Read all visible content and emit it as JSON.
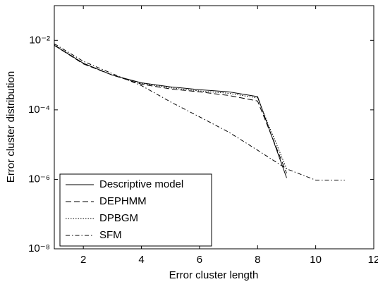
{
  "chart_data": {
    "type": "line",
    "xlabel": "Error cluster length",
    "ylabel": "Error cluster distribution",
    "x": [
      1,
      2,
      3,
      4,
      5,
      6,
      7,
      8,
      9,
      10,
      11
    ],
    "xlim": [
      1,
      12
    ],
    "xticks": [
      2,
      4,
      6,
      8,
      10,
      12
    ],
    "ylim": [
      1e-08,
      0.1
    ],
    "yscale": "log",
    "yticks": [
      {
        "value": 1e-08,
        "label": "10⁻⁸"
      },
      {
        "value": 1e-06,
        "label": "10⁻⁶"
      },
      {
        "value": 0.0001,
        "label": "10⁻⁴"
      },
      {
        "value": 0.01,
        "label": "10⁻²"
      }
    ],
    "legend": "lower left",
    "series": [
      {
        "name": "Descriptive model",
        "color": "#000000",
        "line_style": "solid",
        "values": [
          0.0072,
          0.0022,
          0.001,
          0.0006,
          0.00046,
          0.00038,
          0.00033,
          0.00024,
          1.1e-06,
          null,
          null
        ]
      },
      {
        "name": "DEPHMM",
        "color": "#000000",
        "line_style": "dashed",
        "values": [
          0.0072,
          0.0021,
          0.001,
          0.00055,
          0.0004,
          0.00033,
          0.00026,
          0.00018,
          1.5e-06,
          null,
          null
        ]
      },
      {
        "name": "DPBGM",
        "color": "#000000",
        "line_style": "dotted",
        "values": [
          0.0075,
          0.0022,
          0.001,
          0.00058,
          0.00043,
          0.00035,
          0.0003,
          0.00022,
          2e-06,
          null,
          null
        ]
      },
      {
        "name": "SFM",
        "color": "#000000",
        "line_style": "dashdot",
        "values": [
          0.008,
          0.0025,
          0.0011,
          0.0005,
          0.00017,
          6.3e-05,
          2.3e-05,
          6.9e-06,
          2e-06,
          9.5e-07,
          9.5e-07
        ]
      }
    ]
  }
}
